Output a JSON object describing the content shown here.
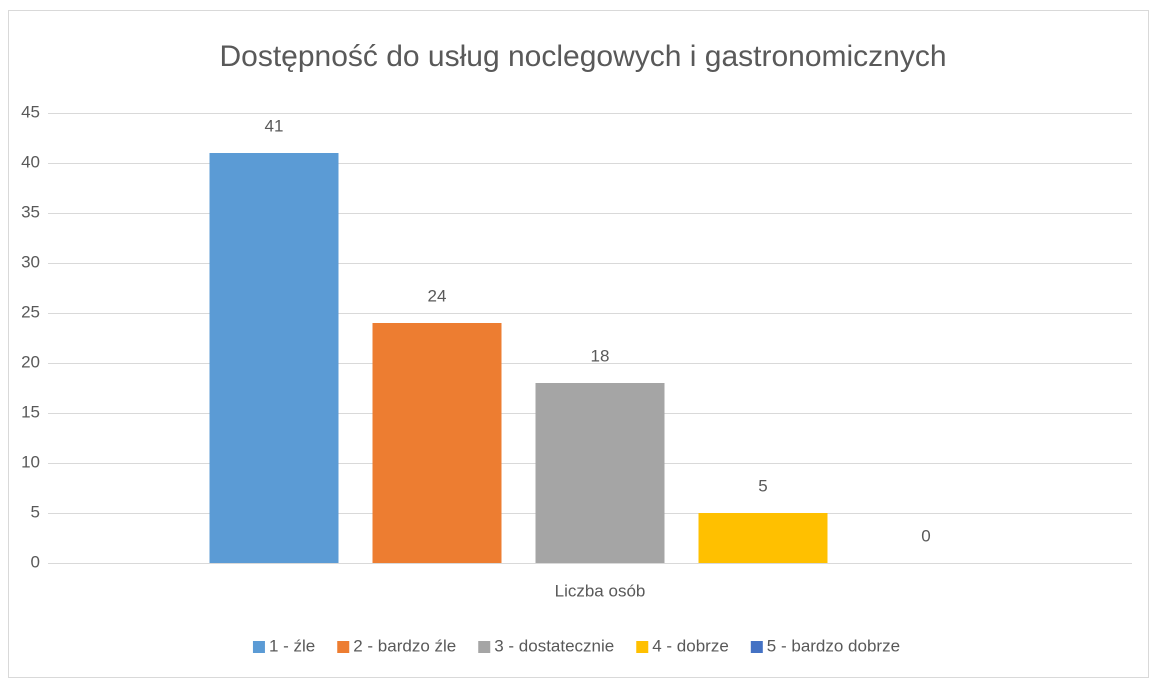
{
  "chart_data": {
    "type": "bar",
    "title": "Dostępność do usług noclegowych i gastronomicznych",
    "categories": [
      "Liczba osób"
    ],
    "series": [
      {
        "name": "1 - źle",
        "color": "#5b9bd5",
        "values": [
          41
        ]
      },
      {
        "name": "2 - bardzo źle",
        "color": "#ed7d31",
        "values": [
          24
        ]
      },
      {
        "name": "3 - dostatecznie",
        "color": "#a5a5a5",
        "values": [
          18
        ]
      },
      {
        "name": "4 - dobrze",
        "color": "#ffc000",
        "values": [
          5
        ]
      },
      {
        "name": "5 - bardzo dobrze",
        "color": "#4472c4",
        "values": [
          0
        ]
      }
    ],
    "ylim": [
      0,
      45
    ],
    "yticks": [
      0,
      5,
      10,
      15,
      20,
      25,
      30,
      35,
      40,
      45
    ],
    "grid": true,
    "legend": "bottom"
  }
}
